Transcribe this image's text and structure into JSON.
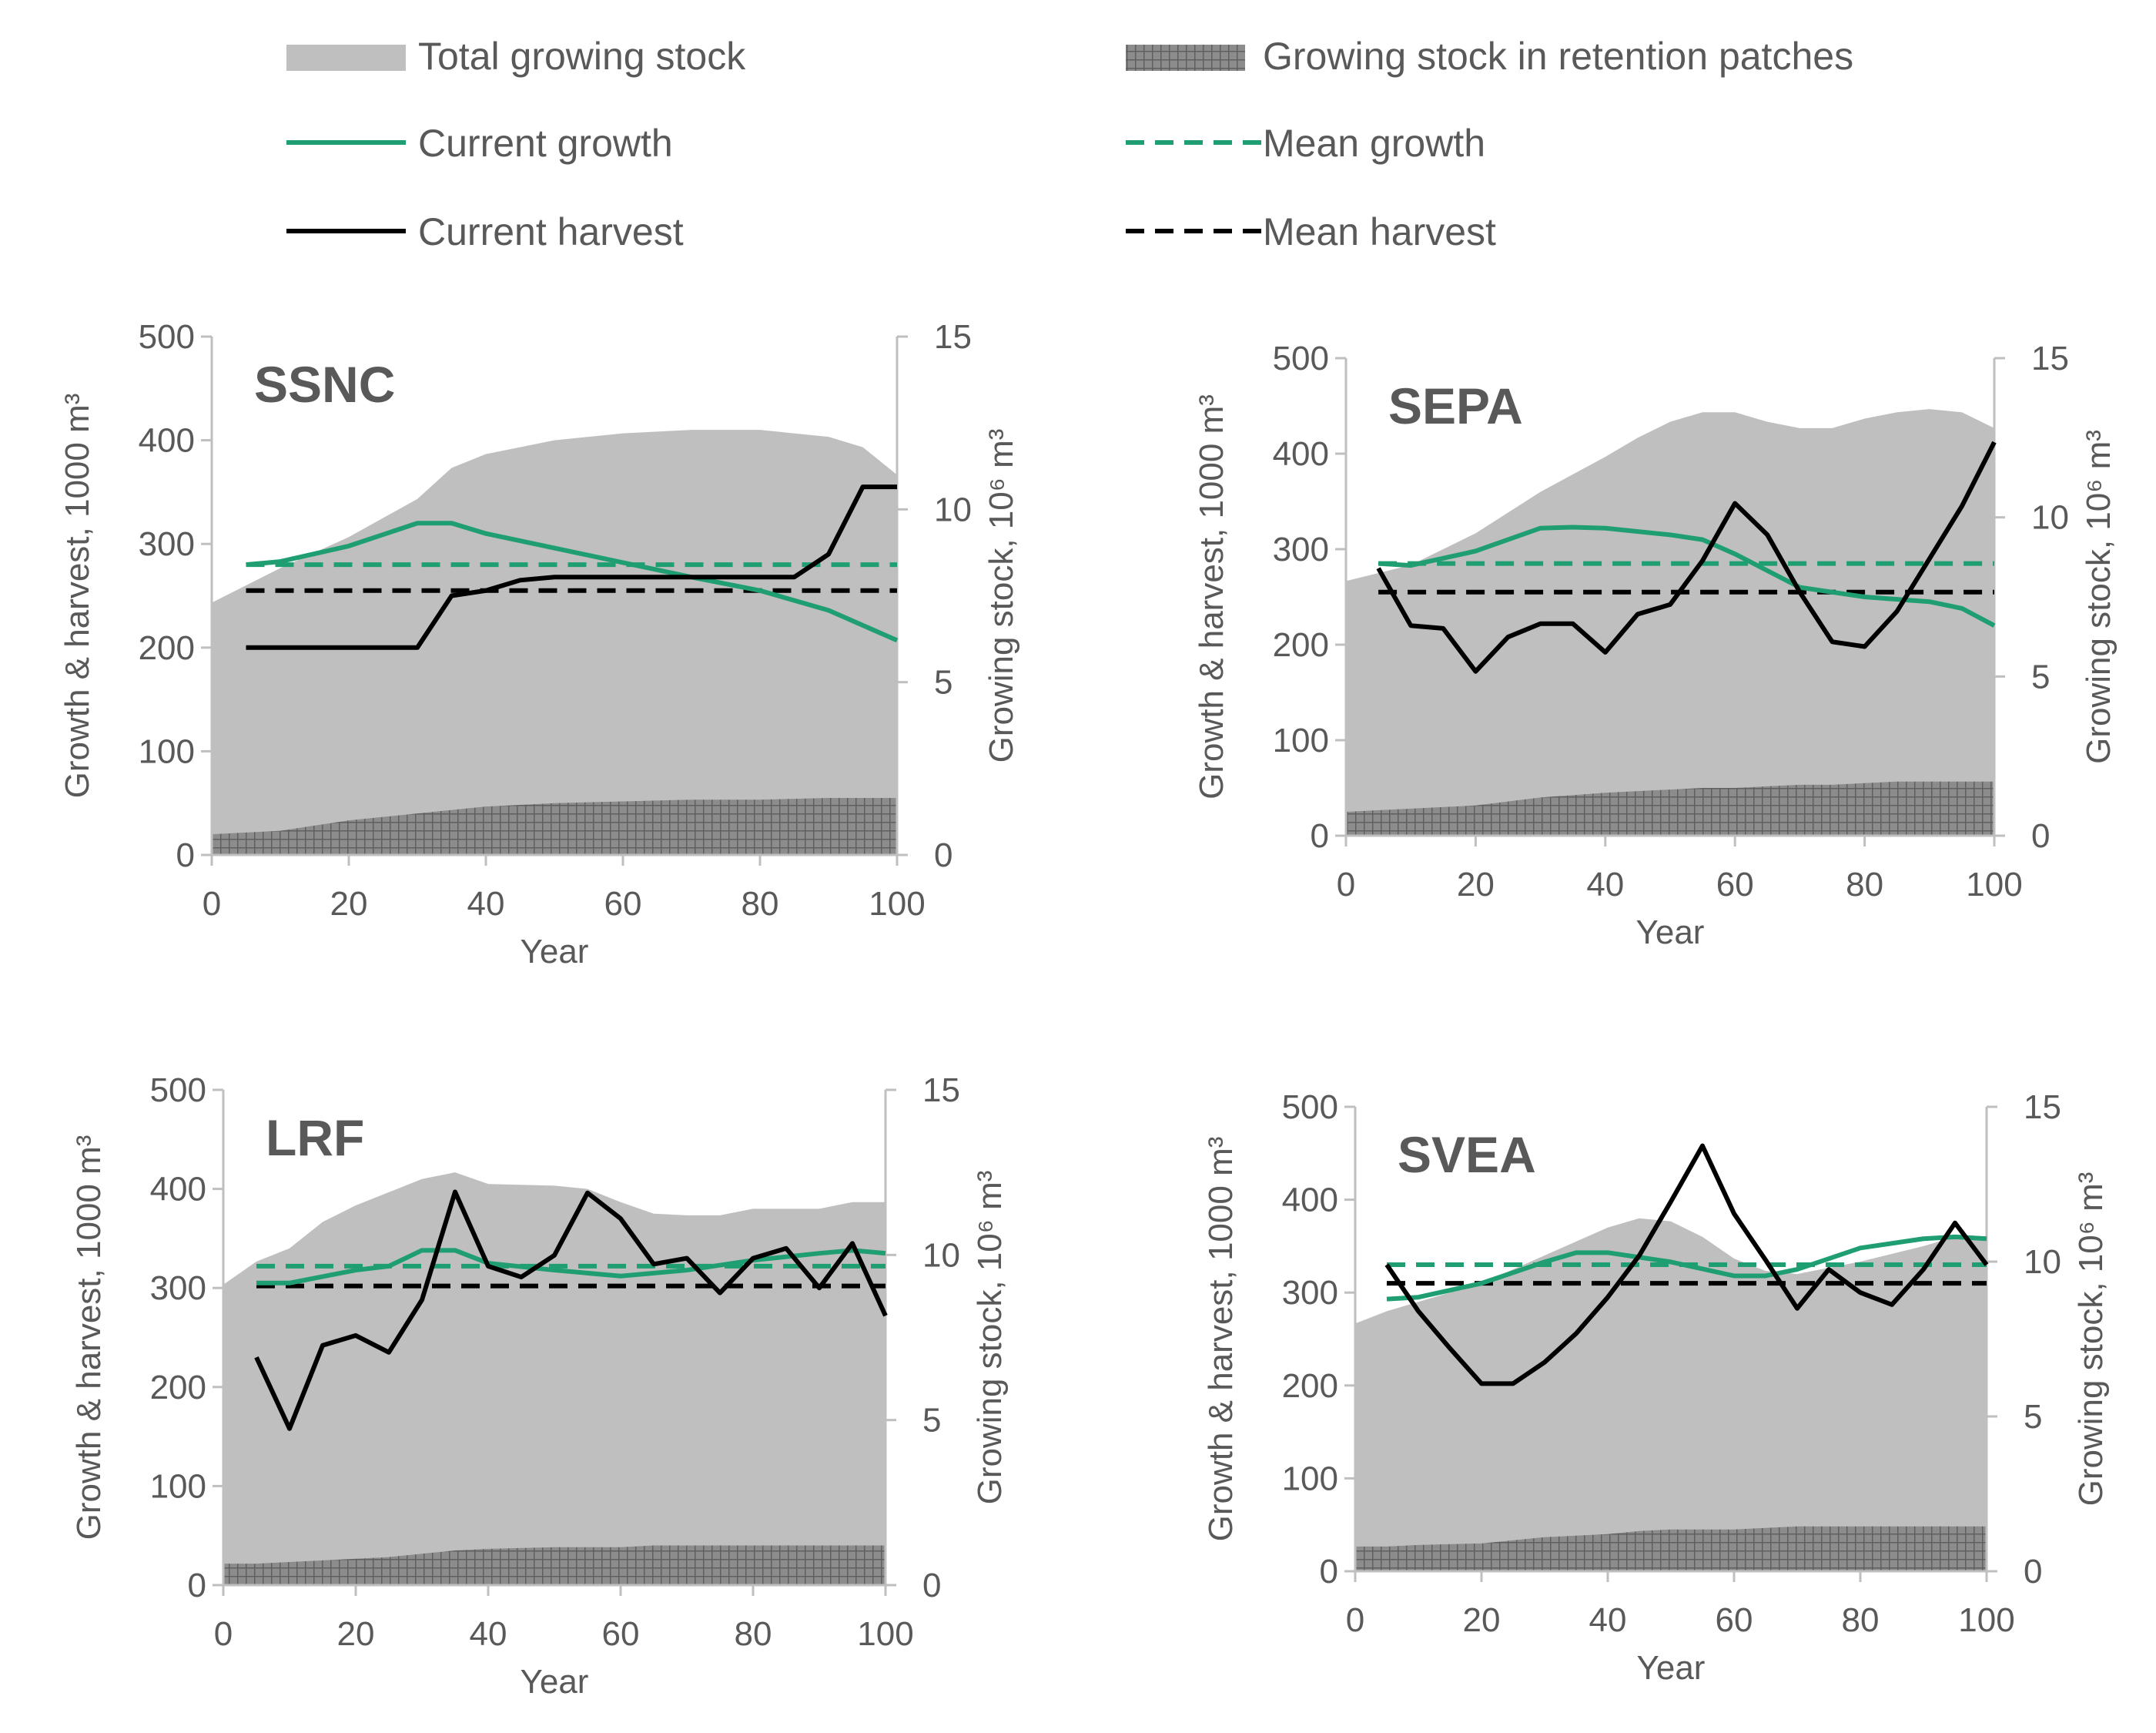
{
  "colors": {
    "total_stock": "#bfbfbf",
    "retention": "#8c8c8c",
    "retention_grid": "#595959",
    "growth": "#1f9e72",
    "harvest": "#000000",
    "axis": "#bfbfbf",
    "text": "#595959"
  },
  "legend": {
    "total": "Total growing stock",
    "retention": "Growing stock in retention patches",
    "current_growth": "Current growth",
    "mean_growth": "Mean growth",
    "current_harvest": "Current harvest",
    "mean_harvest": "Mean harvest"
  },
  "chart_data": [
    {
      "type": "line",
      "title": "SSNC",
      "xlabel": "Year",
      "ylabel": "Growth & harvest, 1000 m³",
      "y2label": "Growing stock, 10⁶ m³",
      "xlim": [
        0,
        100
      ],
      "ylim": [
        0,
        500
      ],
      "y2lim": [
        0,
        15
      ],
      "xticks": [
        "0",
        "20",
        "40",
        "60",
        "80",
        "100"
      ],
      "yticks": [
        "0",
        "100",
        "200",
        "300",
        "400",
        "500"
      ],
      "y2ticks": [
        "0",
        "5",
        "10",
        "15"
      ],
      "stock_x": [
        0,
        10,
        20,
        30,
        35,
        40,
        50,
        60,
        70,
        80,
        90,
        95,
        100
      ],
      "total_stock": [
        7.3,
        8.3,
        9.2,
        10.3,
        11.2,
        11.6,
        12.0,
        12.2,
        12.3,
        12.3,
        12.1,
        11.8,
        11.0
      ],
      "retention_stock": [
        0.6,
        0.7,
        1.0,
        1.2,
        1.3,
        1.4,
        1.5,
        1.55,
        1.6,
        1.6,
        1.65,
        1.65,
        1.65
      ],
      "growth_x": [
        5,
        10,
        20,
        30,
        35,
        40,
        50,
        60,
        70,
        80,
        90,
        100
      ],
      "current_growth": [
        280,
        283,
        298,
        320,
        320,
        310,
        296,
        282,
        268,
        255,
        236,
        207
      ],
      "mean_growth": 280,
      "harvest_x": [
        5,
        10,
        20,
        30,
        35,
        40,
        45,
        50,
        60,
        70,
        80,
        85,
        90,
        95,
        100
      ],
      "current_harvest": [
        200,
        200,
        200,
        200,
        250,
        255,
        265,
        268,
        268,
        268,
        268,
        268,
        290,
        355,
        355
      ],
      "mean_harvest": 255
    },
    {
      "type": "line",
      "title": "SEPA",
      "xlabel": "Year",
      "ylabel": "Growth & harvest, 1000 m³",
      "y2label": "Growing stock, 10⁶ m³",
      "xlim": [
        0,
        100
      ],
      "ylim": [
        0,
        500
      ],
      "y2lim": [
        0,
        15
      ],
      "xticks": [
        "0",
        "20",
        "40",
        "60",
        "80",
        "100"
      ],
      "yticks": [
        "0",
        "100",
        "200",
        "300",
        "400",
        "500"
      ],
      "y2ticks": [
        "0",
        "5",
        "10",
        "15"
      ],
      "stock_x": [
        0,
        10,
        20,
        30,
        40,
        45,
        50,
        55,
        60,
        65,
        70,
        75,
        80,
        85,
        90,
        95,
        100
      ],
      "total_stock": [
        8.0,
        8.5,
        9.5,
        10.8,
        11.9,
        12.5,
        13.0,
        13.3,
        13.3,
        13.0,
        12.8,
        12.8,
        13.1,
        13.3,
        13.4,
        13.3,
        12.8
      ],
      "retention_stock": [
        0.75,
        0.85,
        0.95,
        1.2,
        1.35,
        1.4,
        1.45,
        1.5,
        1.5,
        1.55,
        1.6,
        1.6,
        1.65,
        1.7,
        1.7,
        1.7,
        1.7
      ],
      "growth_x": [
        5,
        10,
        20,
        30,
        35,
        40,
        50,
        55,
        60,
        70,
        80,
        90,
        95,
        100
      ],
      "current_growth": [
        285,
        283,
        298,
        322,
        323,
        322,
        315,
        310,
        295,
        260,
        250,
        245,
        238,
        220
      ],
      "mean_growth": 285,
      "harvest_x": [
        5,
        10,
        15,
        20,
        25,
        30,
        35,
        40,
        45,
        50,
        55,
        60,
        65,
        70,
        75,
        80,
        85,
        90,
        95,
        100
      ],
      "current_harvest": [
        280,
        220,
        217,
        172,
        208,
        222,
        222,
        192,
        232,
        242,
        288,
        348,
        315,
        255,
        203,
        198,
        235,
        290,
        345,
        412
      ],
      "mean_harvest": 255
    },
    {
      "type": "line",
      "title": "LRF",
      "xlabel": "Year",
      "ylabel": "Growth & harvest, 1000 m³",
      "y2label": "Growing stock, 10⁶ m³",
      "xlim": [
        0,
        100
      ],
      "ylim": [
        0,
        500
      ],
      "y2lim": [
        0,
        15
      ],
      "xticks": [
        "0",
        "20",
        "40",
        "60",
        "80",
        "100"
      ],
      "yticks": [
        "0",
        "100",
        "200",
        "300",
        "400",
        "500"
      ],
      "y2ticks": [
        "0",
        "5",
        "10",
        "15"
      ],
      "stock_x": [
        0,
        5,
        10,
        15,
        20,
        25,
        30,
        35,
        40,
        50,
        55,
        60,
        65,
        70,
        75,
        80,
        90,
        95,
        100
      ],
      "total_stock": [
        9.1,
        9.8,
        10.2,
        11.0,
        11.5,
        11.9,
        12.3,
        12.5,
        12.15,
        12.1,
        12.0,
        11.6,
        11.25,
        11.2,
        11.2,
        11.4,
        11.4,
        11.6,
        11.6
      ],
      "retention_stock": [
        0.65,
        0.65,
        0.7,
        0.75,
        0.8,
        0.85,
        0.95,
        1.05,
        1.1,
        1.15,
        1.15,
        1.15,
        1.2,
        1.2,
        1.2,
        1.2,
        1.2,
        1.2,
        1.2
      ],
      "growth_x": [
        5,
        10,
        20,
        25,
        30,
        35,
        40,
        50,
        60,
        70,
        80,
        90,
        95,
        100
      ],
      "current_growth": [
        305,
        305,
        318,
        322,
        338,
        338,
        325,
        318,
        312,
        318,
        328,
        335,
        338,
        335
      ],
      "mean_growth": 322,
      "harvest_x": [
        5,
        10,
        15,
        20,
        25,
        30,
        35,
        40,
        45,
        50,
        55,
        60,
        65,
        70,
        75,
        80,
        85,
        90,
        95,
        100
      ],
      "current_harvest": [
        230,
        158,
        242,
        252,
        235,
        288,
        397,
        322,
        311,
        333,
        396,
        370,
        324,
        330,
        295,
        330,
        340,
        300,
        345,
        272
      ],
      "mean_harvest": 302
    },
    {
      "type": "line",
      "title": "SVEA",
      "xlabel": "Year",
      "ylabel": "Growth & harvest, 1000 m³",
      "y2label": "Growing stock, 10⁶ m³",
      "xlim": [
        0,
        100
      ],
      "ylim": [
        0,
        500
      ],
      "y2lim": [
        0,
        15
      ],
      "xticks": [
        "0",
        "20",
        "40",
        "60",
        "80",
        "100"
      ],
      "yticks": [
        "0",
        "100",
        "200",
        "300",
        "400",
        "500"
      ],
      "y2ticks": [
        "0",
        "5",
        "10",
        "15"
      ],
      "stock_x": [
        0,
        5,
        10,
        20,
        30,
        40,
        45,
        50,
        55,
        60,
        65,
        70,
        80,
        90,
        95,
        100
      ],
      "total_stock": [
        8.0,
        8.4,
        8.7,
        9.3,
        10.2,
        11.1,
        11.4,
        11.3,
        10.8,
        10.1,
        9.7,
        9.6,
        10.0,
        10.5,
        10.8,
        10.8
      ],
      "retention_stock": [
        0.8,
        0.8,
        0.85,
        0.9,
        1.1,
        1.2,
        1.3,
        1.35,
        1.35,
        1.35,
        1.4,
        1.45,
        1.45,
        1.45,
        1.45,
        1.45
      ],
      "growth_x": [
        5,
        10,
        20,
        30,
        35,
        40,
        45,
        50,
        60,
        65,
        70,
        80,
        90,
        95,
        100
      ],
      "current_growth": [
        293,
        295,
        310,
        333,
        343,
        343,
        338,
        333,
        318,
        318,
        325,
        348,
        358,
        360,
        358
      ],
      "mean_growth": 330,
      "harvest_x": [
        5,
        10,
        15,
        20,
        25,
        30,
        35,
        40,
        45,
        50,
        55,
        60,
        65,
        70,
        75,
        80,
        85,
        90,
        95,
        100
      ],
      "current_harvest": [
        330,
        280,
        240,
        202,
        202,
        225,
        256,
        295,
        340,
        398,
        458,
        385,
        335,
        283,
        325,
        300,
        287,
        325,
        375,
        330
      ],
      "mean_harvest": 310
    }
  ]
}
